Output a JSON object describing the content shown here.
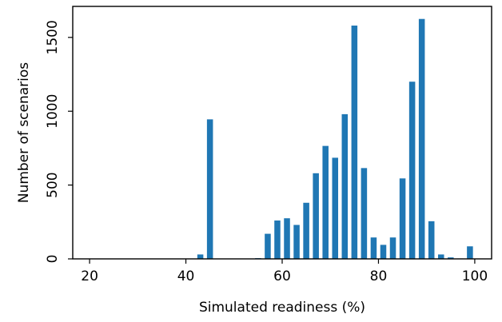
{
  "chart_data": {
    "type": "bar",
    "title": "",
    "xlabel": "Simulated readiness (%)",
    "ylabel": "Number of scenarios",
    "xlim": [
      16.5,
      103.5
    ],
    "ylim": [
      0,
      1710
    ],
    "xticks": [
      20,
      40,
      60,
      80,
      100
    ],
    "yticks": [
      0,
      500,
      1000,
      1500
    ],
    "bar_width": 1.25,
    "bar_color": "#1f77b4",
    "grid": false,
    "x": [
      43,
      45,
      55,
      57,
      59,
      61,
      63,
      65,
      67,
      69,
      71,
      73,
      75,
      77,
      79,
      81,
      83,
      85,
      87,
      89,
      91,
      93,
      95,
      97,
      99
    ],
    "values": [
      30,
      945,
      5,
      170,
      260,
      275,
      230,
      380,
      580,
      765,
      685,
      980,
      1580,
      615,
      145,
      95,
      145,
      545,
      1200,
      1625,
      255,
      30,
      10,
      3,
      85
    ]
  }
}
